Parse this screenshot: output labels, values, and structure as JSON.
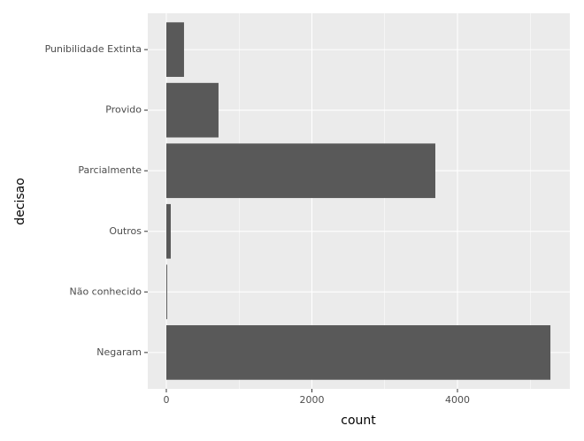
{
  "chart_data": {
    "type": "barh",
    "x_label": "count",
    "y_label": "decisao",
    "categories": [
      "Punibilidade Extinta",
      "Provido",
      "Parcialmente",
      "Outros",
      "Não conhecido",
      "Negaram"
    ],
    "values": [
      243,
      717,
      3696,
      61,
      12,
      5277
    ],
    "color": "#595959",
    "xlim": [
      -255,
      5544
    ],
    "xticks": [
      0,
      2000,
      4000
    ],
    "xminor": [
      1000,
      3000,
      5000
    ],
    "grid": true
  }
}
